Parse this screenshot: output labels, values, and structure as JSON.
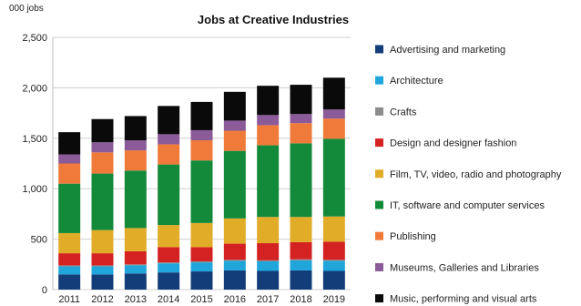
{
  "chart_data": {
    "type": "bar",
    "stacked": true,
    "title": "Jobs at Creative Industries",
    "unit_label": "000 jobs",
    "categories": [
      "2011",
      "2012",
      "2013",
      "2014",
      "2015",
      "2016",
      "2017",
      "2018",
      "2019"
    ],
    "ylim": [
      0,
      2500
    ],
    "yticks": [
      0,
      500,
      1000,
      1500,
      2000,
      2500
    ],
    "ytick_labels": [
      "0",
      "500",
      "1,000",
      "1,500",
      "2,000",
      "2,500"
    ],
    "grid": true,
    "legend_position": "right",
    "series": [
      {
        "name": "Advertising and marketing",
        "color": "#123d78",
        "values": [
          150,
          150,
          160,
          170,
          180,
          190,
          185,
          190,
          185
        ]
      },
      {
        "name": "Architecture",
        "color": "#21a6dc",
        "values": [
          80,
          80,
          80,
          90,
          90,
          95,
          95,
          100,
          100
        ]
      },
      {
        "name": "Crafts",
        "color": "#8c8c8c",
        "values": [
          10,
          10,
          10,
          10,
          10,
          10,
          10,
          10,
          10
        ]
      },
      {
        "name": "Design and designer fashion",
        "color": "#d42222",
        "values": [
          120,
          120,
          130,
          150,
          140,
          160,
          170,
          170,
          180
        ]
      },
      {
        "name": "Film, TV, video, radio and photography",
        "color": "#e1ac27",
        "values": [
          200,
          230,
          230,
          220,
          240,
          250,
          260,
          250,
          250
        ]
      },
      {
        "name": "IT, software and computer services",
        "color": "#138a3a",
        "values": [
          490,
          560,
          570,
          600,
          620,
          670,
          710,
          730,
          770
        ]
      },
      {
        "name": "Publishing",
        "color": "#ef7a3a",
        "values": [
          200,
          210,
          200,
          200,
          200,
          200,
          200,
          200,
          200
        ]
      },
      {
        "name": "Museums, Galleries and Libraries",
        "color": "#8b5a98",
        "values": [
          90,
          100,
          100,
          100,
          100,
          100,
          100,
          90,
          90
        ]
      },
      {
        "name": "Music, performing and visual arts",
        "color": "#0a0a0a",
        "values": [
          220,
          230,
          240,
          280,
          280,
          285,
          290,
          290,
          315
        ]
      }
    ]
  }
}
